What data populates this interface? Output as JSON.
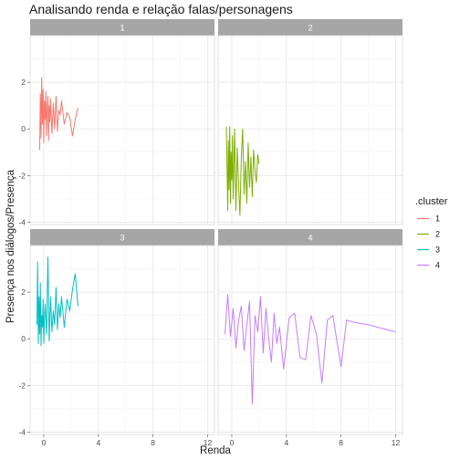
{
  "chart_data": {
    "type": "line",
    "title": "Analisando renda e relação falas/personagens",
    "xlabel": "Renda",
    "ylabel": "Presença nos diálogos/Presença",
    "xlim": [
      -1,
      12.5
    ],
    "ylim": [
      -4.1,
      4.0
    ],
    "x_ticks": [
      0,
      4,
      8,
      12
    ],
    "y_ticks": [
      -4,
      -2,
      0,
      2
    ],
    "grid": true,
    "facets": [
      "1",
      "2",
      "3",
      "4"
    ],
    "legend": {
      "title": ".cluster",
      "position": "right",
      "entries": [
        "1",
        "2",
        "3",
        "4"
      ]
    },
    "series": [
      {
        "name": "1",
        "color": "#F8766D",
        "x": [
          -0.3,
          -0.25,
          -0.2,
          -0.15,
          -0.1,
          -0.05,
          0.0,
          0.05,
          0.1,
          0.15,
          0.2,
          0.25,
          0.3,
          0.35,
          0.4,
          0.45,
          0.5,
          0.6,
          0.7,
          0.8,
          0.9,
          1.0,
          1.1,
          1.2,
          1.3,
          1.5,
          1.7,
          1.9,
          2.1,
          2.3,
          2.5
        ],
        "y": [
          -0.9,
          1.5,
          -0.4,
          2.2,
          0.2,
          1.7,
          -0.6,
          1.2,
          0.4,
          1.6,
          -0.3,
          0.9,
          1.4,
          -0.5,
          1.0,
          0.3,
          1.3,
          -0.2,
          1.1,
          0.0,
          1.4,
          -0.1,
          0.8,
          0.6,
          1.2,
          0.2,
          0.7,
          0.5,
          -0.3,
          0.4,
          0.9
        ]
      },
      {
        "name": "2",
        "color": "#7CAE00",
        "x": [
          -0.4,
          -0.35,
          -0.3,
          -0.25,
          -0.2,
          -0.15,
          -0.1,
          -0.05,
          0.0,
          0.05,
          0.1,
          0.15,
          0.2,
          0.3,
          0.4,
          0.5,
          0.6,
          0.7,
          0.8,
          0.9,
          1.0,
          1.1,
          1.2,
          1.3,
          1.4,
          1.5,
          1.6,
          1.7,
          1.8,
          1.9,
          2.0
        ],
        "y": [
          0.1,
          -1.5,
          -3.5,
          -0.5,
          -2.6,
          0.1,
          -3.2,
          -1.0,
          -2.2,
          -0.3,
          -3.0,
          -1.6,
          0.0,
          -3.5,
          -0.8,
          -2.4,
          -3.7,
          -1.2,
          0.0,
          -2.8,
          -1.4,
          -3.2,
          -0.6,
          -2.5,
          -1.2,
          -2.9,
          -0.9,
          -1.8,
          -2.3,
          -1.1,
          -1.5
        ]
      },
      {
        "name": "3",
        "color": "#00BFC4",
        "x": [
          -0.5,
          -0.45,
          -0.4,
          -0.35,
          -0.3,
          -0.25,
          -0.2,
          -0.15,
          -0.1,
          -0.05,
          0.0,
          0.05,
          0.1,
          0.2,
          0.3,
          0.4,
          0.5,
          0.6,
          0.7,
          0.8,
          0.9,
          1.0,
          1.1,
          1.2,
          1.3,
          1.5,
          1.7,
          1.9,
          2.1,
          2.3,
          2.5
        ],
        "y": [
          0.6,
          3.3,
          -0.2,
          1.8,
          0.2,
          2.4,
          -0.3,
          1.0,
          0.5,
          1.7,
          -0.2,
          0.8,
          1.5,
          0.2,
          3.5,
          -0.1,
          1.8,
          0.3,
          1.2,
          0.6,
          2.2,
          0.4,
          1.5,
          0.9,
          1.8,
          0.5,
          1.7,
          1.2,
          2.1,
          2.8,
          1.4
        ]
      },
      {
        "name": "4",
        "color": "#C77CFF",
        "x": [
          -0.5,
          -0.3,
          -0.1,
          0.1,
          0.3,
          0.5,
          0.7,
          0.9,
          1.1,
          1.3,
          1.5,
          1.7,
          1.9,
          2.1,
          2.3,
          2.5,
          2.7,
          2.9,
          3.1,
          3.3,
          3.5,
          3.8,
          4.2,
          4.6,
          5.0,
          5.4,
          5.8,
          6.2,
          6.6,
          7.0,
          7.4,
          8.0,
          8.4,
          9.0,
          10.0,
          12.0
        ],
        "y": [
          0.2,
          1.9,
          0.1,
          1.3,
          -0.4,
          0.8,
          1.4,
          -0.5,
          0.6,
          1.6,
          -2.8,
          1.0,
          0.3,
          1.8,
          -0.6,
          1.3,
          0.0,
          -1.0,
          1.1,
          -0.2,
          0.5,
          -1.3,
          0.9,
          1.1,
          -0.8,
          -0.9,
          1.0,
          0.2,
          -1.9,
          0.8,
          1.0,
          -1.2,
          0.8,
          0.7,
          0.6,
          0.3
        ]
      }
    ]
  }
}
